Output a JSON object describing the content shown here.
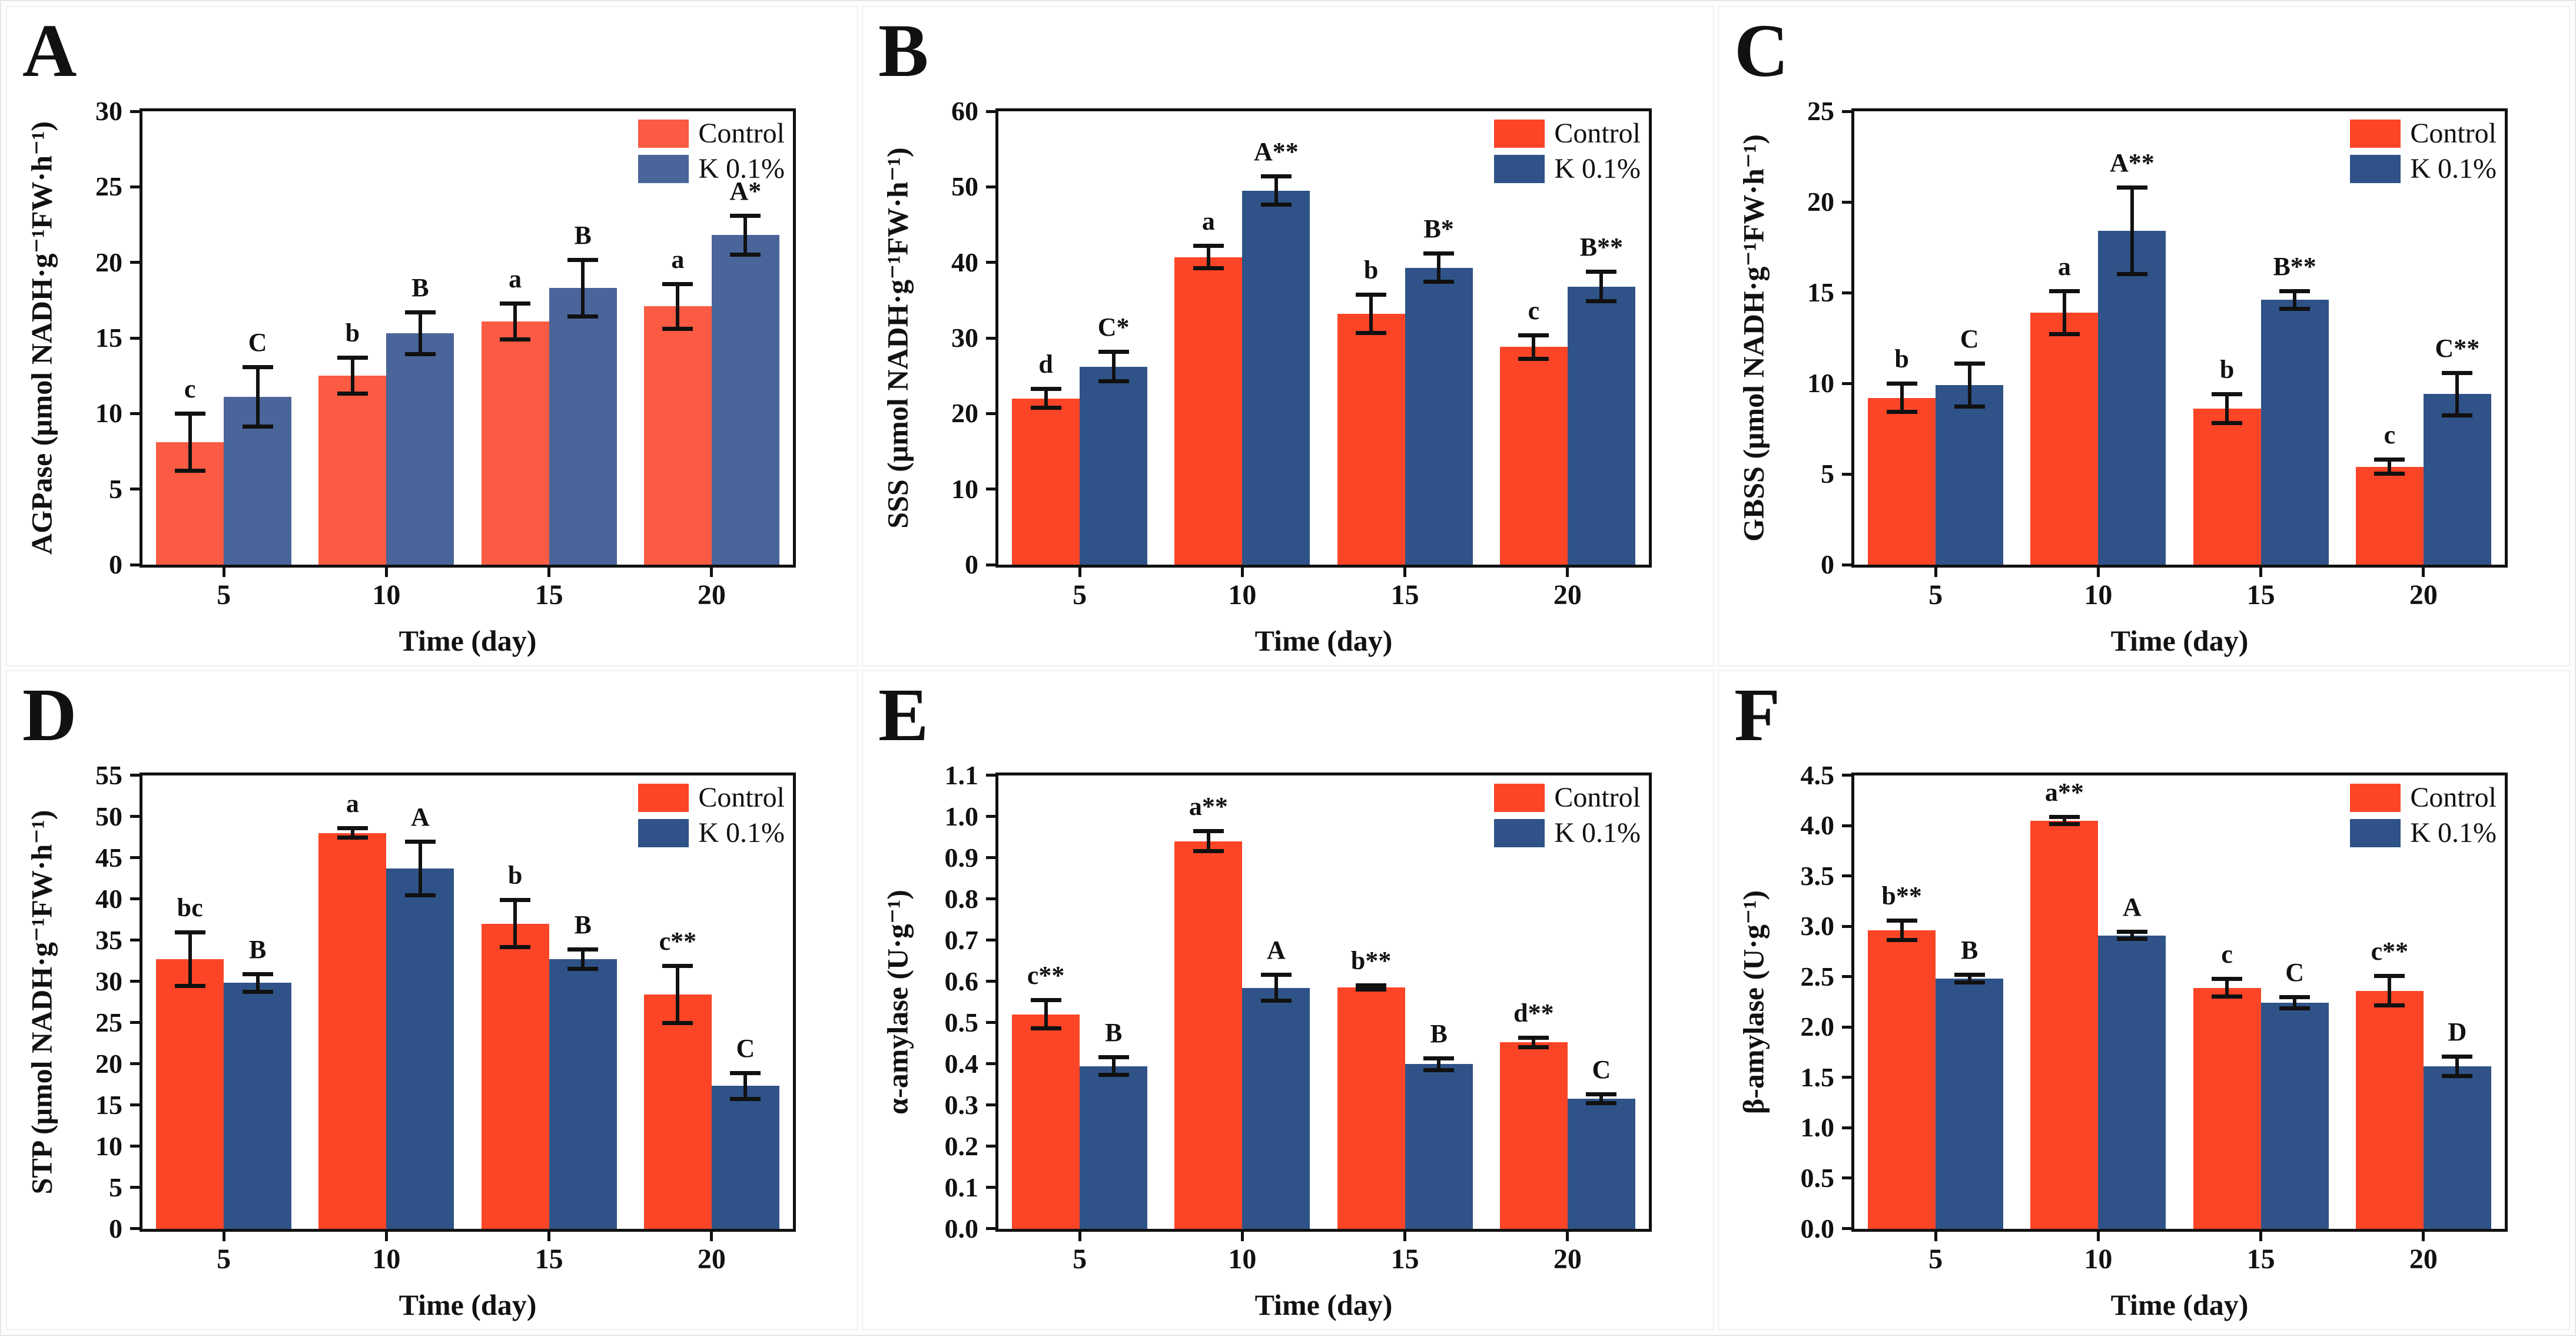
{
  "figure": {
    "xlabel": "Time (day)",
    "categories": [
      "5",
      "10",
      "15",
      "20"
    ],
    "legend_labels": [
      "Control",
      "K 0.1%"
    ],
    "legend_position": "top-right",
    "panel_labels": [
      "A",
      "B",
      "C",
      "D",
      "E",
      "F"
    ]
  },
  "chart_data": [
    {
      "panel_label": "A",
      "type": "bar",
      "title": "",
      "ylabel": "AGPase (μmol NADH·g⁻¹FW·h⁻¹)",
      "xlabel": "Time (day)",
      "categories": [
        "5",
        "10",
        "15",
        "20"
      ],
      "ylim": [
        0,
        30
      ],
      "yticks": [
        "0",
        "5",
        "10",
        "15",
        "20",
        "25",
        "30"
      ],
      "grid": false,
      "legend_position": "top-right",
      "colors": [
        "#fb5a43",
        "#4a6599"
      ],
      "series": [
        {
          "name": "Control",
          "values": [
            8.1,
            12.5,
            16.1,
            17.1
          ],
          "errors": [
            1.9,
            1.2,
            1.2,
            1.5
          ],
          "letters": [
            "c",
            "b",
            "a",
            "a"
          ]
        },
        {
          "name": "K 0.1%",
          "values": [
            11.1,
            15.3,
            18.3,
            21.8
          ],
          "errors": [
            2.0,
            1.4,
            1.9,
            1.3
          ],
          "letters": [
            "C",
            "B",
            "B",
            "A*"
          ]
        }
      ]
    },
    {
      "panel_label": "B",
      "type": "bar",
      "title": "",
      "ylabel": "SSS (μmol NADH·g⁻¹FW·h⁻¹)",
      "xlabel": "Time (day)",
      "categories": [
        "5",
        "10",
        "15",
        "20"
      ],
      "ylim": [
        0,
        60
      ],
      "yticks": [
        "0",
        "10",
        "20",
        "30",
        "40",
        "50",
        "60"
      ],
      "grid": false,
      "legend_position": "top-right",
      "colors": [
        "#fc4527",
        "#2f5388"
      ],
      "series": [
        {
          "name": "Control",
          "values": [
            22.0,
            40.7,
            33.2,
            28.8
          ],
          "errors": [
            1.3,
            1.5,
            2.6,
            1.6
          ],
          "letters": [
            "d",
            "a",
            "b",
            "c"
          ]
        },
        {
          "name": "K 0.1%",
          "values": [
            26.2,
            49.5,
            39.3,
            36.8
          ],
          "errors": [
            2.0,
            1.9,
            1.9,
            2.0
          ],
          "letters": [
            "C*",
            "A**",
            "B*",
            "B**"
          ]
        }
      ]
    },
    {
      "panel_label": "C",
      "type": "bar",
      "title": "",
      "ylabel": "GBSS (μmol NADH·g⁻¹FW·h⁻¹)",
      "xlabel": "Time (day)",
      "categories": [
        "5",
        "10",
        "15",
        "20"
      ],
      "ylim": [
        0,
        25
      ],
      "yticks": [
        "0",
        "5",
        "10",
        "15",
        "20",
        "25"
      ],
      "grid": false,
      "legend_position": "top-right",
      "colors": [
        "#fc4527",
        "#2f5388"
      ],
      "series": [
        {
          "name": "Control",
          "values": [
            9.2,
            13.9,
            8.6,
            5.4
          ],
          "errors": [
            0.8,
            1.2,
            0.8,
            0.4
          ],
          "letters": [
            "b",
            "a",
            "b",
            "c"
          ]
        },
        {
          "name": "K 0.1%",
          "values": [
            9.9,
            18.4,
            14.6,
            9.4
          ],
          "errors": [
            1.2,
            2.4,
            0.5,
            1.2
          ],
          "letters": [
            "C",
            "A**",
            "B**",
            "C**"
          ]
        }
      ]
    },
    {
      "panel_label": "D",
      "type": "bar",
      "title": "",
      "ylabel": "STP (μmol NADH·g⁻¹FW·h⁻¹)",
      "xlabel": "Time (day)",
      "categories": [
        "5",
        "10",
        "15",
        "20"
      ],
      "ylim": [
        0,
        55
      ],
      "yticks": [
        "0",
        "5",
        "10",
        "15",
        "20",
        "25",
        "30",
        "35",
        "40",
        "45",
        "50",
        "55"
      ],
      "grid": false,
      "legend_position": "top-right",
      "colors": [
        "#fc4527",
        "#2f5388"
      ],
      "series": [
        {
          "name": "Control",
          "values": [
            32.7,
            48.0,
            37.0,
            28.4
          ],
          "errors": [
            3.3,
            0.6,
            2.9,
            3.5
          ],
          "letters": [
            "bc",
            "a",
            "b",
            "c**"
          ]
        },
        {
          "name": "K 0.1%",
          "values": [
            29.8,
            43.7,
            32.7,
            17.3
          ],
          "errors": [
            1.1,
            3.3,
            1.2,
            1.6
          ],
          "letters": [
            "B",
            "A",
            "B",
            "C"
          ]
        }
      ]
    },
    {
      "panel_label": "E",
      "type": "bar",
      "title": "",
      "ylabel": "α-amylase (U·g⁻¹)",
      "xlabel": "Time (day)",
      "categories": [
        "5",
        "10",
        "15",
        "20"
      ],
      "ylim": [
        0,
        1.1
      ],
      "yticks": [
        "0.0",
        "0.1",
        "0.2",
        "0.3",
        "0.4",
        "0.5",
        "0.6",
        "0.7",
        "0.8",
        "0.9",
        "1.0",
        "1.1"
      ],
      "grid": false,
      "legend_position": "top-right",
      "colors": [
        "#fc4527",
        "#2f5388"
      ],
      "series": [
        {
          "name": "Control",
          "values": [
            0.52,
            0.94,
            0.585,
            0.452
          ],
          "errors": [
            0.035,
            0.025,
            0.006,
            0.012
          ],
          "letters": [
            "c**",
            "a**",
            "b**",
            "d**"
          ]
        },
        {
          "name": "K 0.1%",
          "values": [
            0.394,
            0.584,
            0.399,
            0.315
          ],
          "errors": [
            0.022,
            0.032,
            0.015,
            0.012
          ],
          "letters": [
            "B",
            "A",
            "B",
            "C"
          ]
        }
      ]
    },
    {
      "panel_label": "F",
      "type": "bar",
      "title": "",
      "ylabel": "β-amylase (U·g⁻¹)",
      "xlabel": "Time (day)",
      "categories": [
        "5",
        "10",
        "15",
        "20"
      ],
      "ylim": [
        0,
        4.5
      ],
      "yticks": [
        "0.0",
        "0.5",
        "1.0",
        "1.5",
        "2.0",
        "2.5",
        "3.0",
        "3.5",
        "4.0",
        "4.5"
      ],
      "grid": false,
      "legend_position": "top-right",
      "colors": [
        "#fc4527",
        "#2f5388"
      ],
      "series": [
        {
          "name": "Control",
          "values": [
            2.96,
            4.05,
            2.39,
            2.36
          ],
          "errors": [
            0.1,
            0.04,
            0.09,
            0.15
          ],
          "letters": [
            "b**",
            "a**",
            "c",
            "c**"
          ]
        },
        {
          "name": "K 0.1%",
          "values": [
            2.48,
            2.91,
            2.24,
            1.61
          ],
          "errors": [
            0.04,
            0.04,
            0.06,
            0.1
          ],
          "letters": [
            "B",
            "A",
            "C",
            "D"
          ]
        }
      ]
    }
  ]
}
